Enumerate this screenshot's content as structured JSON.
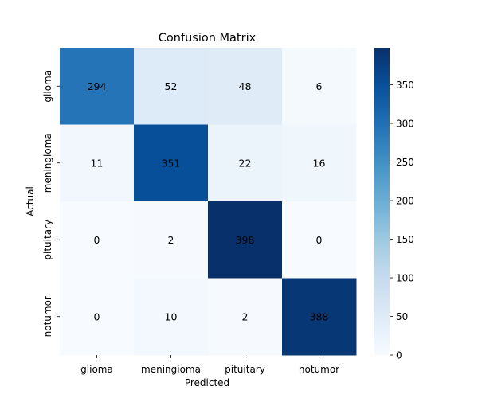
{
  "chart_data": {
    "type": "heatmap",
    "title": "Confusion Matrix",
    "xlabel": "Predicted",
    "ylabel": "Actual",
    "x_categories": [
      "glioma",
      "meningioma",
      "pituitary",
      "notumor"
    ],
    "y_categories": [
      "glioma",
      "meningioma",
      "pituitary",
      "notumor"
    ],
    "values": [
      [
        294,
        52,
        48,
        6
      ],
      [
        11,
        351,
        22,
        16
      ],
      [
        0,
        2,
        398,
        0
      ],
      [
        0,
        10,
        2,
        388
      ]
    ],
    "colorbar": {
      "min": 0,
      "max": 398,
      "ticks": [
        0,
        50,
        100,
        150,
        200,
        250,
        300,
        350
      ],
      "colormap": "Blues"
    },
    "annotation_color_light": "#ffffff",
    "annotation_color_dark": "#262626"
  }
}
